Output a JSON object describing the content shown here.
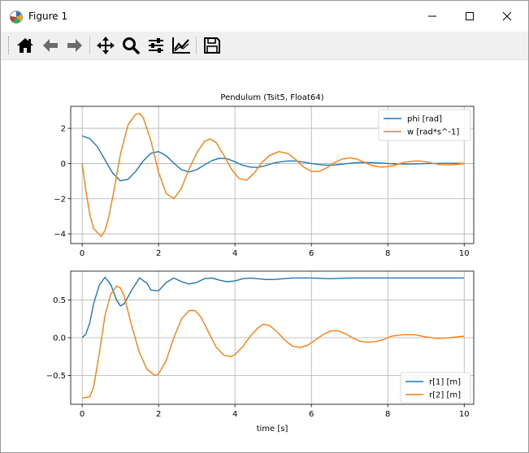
{
  "window": {
    "title": "Figure 1"
  },
  "toolbar": {
    "buttons": [
      {
        "name": "home-icon"
      },
      {
        "name": "back-arrow-icon"
      },
      {
        "name": "forward-arrow-icon"
      },
      {
        "name": "pan-icon"
      },
      {
        "name": "zoom-icon"
      },
      {
        "name": "configure-subplots-icon"
      },
      {
        "name": "edit-axis-icon"
      },
      {
        "name": "save-icon"
      }
    ]
  },
  "chart_data": [
    {
      "type": "line",
      "title": "Pendulum (Tsit5, Float64)",
      "xlabel": "",
      "ylabel": "",
      "xlim": [
        -0.3,
        10.25
      ],
      "ylim": [
        -4.55,
        3.25
      ],
      "xticks": [
        0,
        2,
        4,
        6,
        8,
        10
      ],
      "yticks": [
        -4,
        -2,
        0,
        2
      ],
      "xtick_labels": [
        "0",
        "2",
        "4",
        "6",
        "8",
        "10"
      ],
      "ytick_labels": [
        "−4",
        "−2",
        "0",
        "2"
      ],
      "grid": true,
      "legend": "upper right",
      "series": [
        {
          "name": "phi [rad]",
          "color": "#1f77b4",
          "x": [
            0,
            0.2,
            0.4,
            0.6,
            0.8,
            1,
            1.2,
            1.4,
            1.6,
            1.8,
            2,
            2.2,
            2.4,
            2.6,
            2.8,
            3,
            3.2,
            3.4,
            3.6,
            3.8,
            4,
            4.2,
            4.4,
            4.6,
            4.8,
            5,
            5.2,
            5.4,
            5.6,
            5.8,
            6,
            6.2,
            6.4,
            6.6,
            6.8,
            7,
            7.2,
            7.4,
            7.6,
            7.8,
            8,
            8.2,
            8.4,
            8.6,
            8.8,
            9,
            9.2,
            9.4,
            9.6,
            9.8,
            10
          ],
          "y": [
            1.57,
            1.42,
            0.95,
            0.2,
            -0.55,
            -0.98,
            -0.9,
            -0.45,
            0.15,
            0.58,
            0.68,
            0.45,
            0.02,
            -0.35,
            -0.48,
            -0.35,
            -0.08,
            0.17,
            0.3,
            0.27,
            0.1,
            -0.1,
            -0.2,
            -0.22,
            -0.12,
            0.02,
            0.1,
            0.15,
            0.14,
            0.08,
            0.0,
            -0.06,
            -0.09,
            -0.08,
            -0.04,
            0.01,
            0.05,
            0.06,
            0.05,
            0.03,
            0.0,
            -0.02,
            -0.03,
            -0.03,
            -0.02,
            -0.01,
            0.0,
            0.01,
            0.01,
            0.01,
            0.0
          ]
        },
        {
          "name": "w [rad*s^-1]",
          "color": "#ff7f0e",
          "x": [
            0,
            0.1,
            0.2,
            0.3,
            0.5,
            0.6,
            0.7,
            0.8,
            1,
            1.2,
            1.4,
            1.5,
            1.6,
            1.8,
            2,
            2.2,
            2.4,
            2.6,
            2.8,
            3,
            3.2,
            3.35,
            3.5,
            3.7,
            3.9,
            4.1,
            4.3,
            4.5,
            4.7,
            4.9,
            5.15,
            5.4,
            5.6,
            5.8,
            6.0,
            6.2,
            6.4,
            6.6,
            6.8,
            7.0,
            7.2,
            7.4,
            7.6,
            7.8,
            8.0,
            8.2,
            8.4,
            8.6,
            8.8,
            9.0,
            9.2,
            9.4,
            9.6,
            9.8,
            10
          ],
          "y": [
            0,
            -1.6,
            -2.9,
            -3.7,
            -4.15,
            -3.8,
            -3.0,
            -1.9,
            0.5,
            2.2,
            2.8,
            2.85,
            2.6,
            1.3,
            -0.5,
            -1.7,
            -2.0,
            -1.4,
            -0.3,
            0.6,
            1.25,
            1.4,
            1.2,
            0.5,
            -0.3,
            -0.85,
            -0.95,
            -0.55,
            0.05,
            0.45,
            0.68,
            0.55,
            0.2,
            -0.2,
            -0.45,
            -0.45,
            -0.25,
            0.05,
            0.25,
            0.33,
            0.25,
            0.05,
            -0.12,
            -0.2,
            -0.18,
            -0.08,
            0.05,
            0.12,
            0.15,
            0.1,
            0.0,
            -0.07,
            -0.08,
            -0.05,
            0.0
          ]
        }
      ]
    },
    {
      "type": "line",
      "title": "",
      "xlabel": "time [s]",
      "ylabel": "",
      "xlim": [
        -0.3,
        10.25
      ],
      "ylim": [
        -0.88,
        0.88
      ],
      "xticks": [
        0,
        2,
        4,
        6,
        8,
        10
      ],
      "yticks": [
        -0.5,
        0.0,
        0.5
      ],
      "xtick_labels": [
        "0",
        "2",
        "4",
        "6",
        "8",
        "10"
      ],
      "ytick_labels": [
        "−0.5",
        "0.0",
        "0.5"
      ],
      "grid": true,
      "legend": "lower right",
      "series": [
        {
          "name": "r[1] [m]",
          "color": "#1f77b4",
          "x": [
            0,
            0.1,
            0.2,
            0.3,
            0.45,
            0.6,
            0.75,
            0.9,
            1.0,
            1.1,
            1.3,
            1.5,
            1.7,
            1.8,
            2.0,
            2.2,
            2.4,
            2.6,
            2.8,
            3.0,
            3.2,
            3.4,
            3.6,
            3.8,
            4.0,
            4.2,
            4.4,
            4.6,
            4.8,
            5.0,
            5.5,
            6.0,
            6.5,
            7.0,
            8.0,
            9.0,
            10.0
          ],
          "y": [
            0.0,
            0.05,
            0.2,
            0.45,
            0.7,
            0.8,
            0.7,
            0.5,
            0.42,
            0.45,
            0.63,
            0.79,
            0.72,
            0.63,
            0.62,
            0.73,
            0.79,
            0.74,
            0.71,
            0.73,
            0.78,
            0.79,
            0.76,
            0.74,
            0.75,
            0.78,
            0.79,
            0.78,
            0.77,
            0.77,
            0.79,
            0.79,
            0.78,
            0.79,
            0.79,
            0.79,
            0.79
          ]
        },
        {
          "name": "r[2] [m]",
          "color": "#ff7f0e",
          "x": [
            0,
            0.2,
            0.3,
            0.45,
            0.6,
            0.75,
            0.9,
            1.0,
            1.1,
            1.3,
            1.5,
            1.7,
            1.9,
            2.0,
            2.2,
            2.4,
            2.6,
            2.8,
            2.95,
            3.1,
            3.3,
            3.5,
            3.7,
            3.9,
            4.0,
            4.2,
            4.4,
            4.6,
            4.75,
            4.9,
            5.1,
            5.3,
            5.5,
            5.7,
            5.9,
            6.1,
            6.3,
            6.5,
            6.7,
            6.9,
            7.1,
            7.3,
            7.5,
            7.7,
            7.9,
            8.1,
            8.4,
            8.7,
            9.0,
            9.3,
            9.6,
            10.0
          ],
          "y": [
            -0.8,
            -0.78,
            -0.65,
            -0.2,
            0.3,
            0.58,
            0.68,
            0.66,
            0.55,
            0.15,
            -0.2,
            -0.42,
            -0.5,
            -0.48,
            -0.3,
            0.0,
            0.25,
            0.36,
            0.36,
            0.28,
            0.08,
            -0.12,
            -0.23,
            -0.25,
            -0.22,
            -0.12,
            0.02,
            0.13,
            0.18,
            0.16,
            0.08,
            -0.03,
            -0.11,
            -0.13,
            -0.1,
            -0.03,
            0.04,
            0.09,
            0.09,
            0.05,
            -0.01,
            -0.05,
            -0.06,
            -0.05,
            -0.02,
            0.02,
            0.04,
            0.04,
            0.01,
            -0.01,
            0.0,
            0.02
          ]
        }
      ]
    }
  ]
}
